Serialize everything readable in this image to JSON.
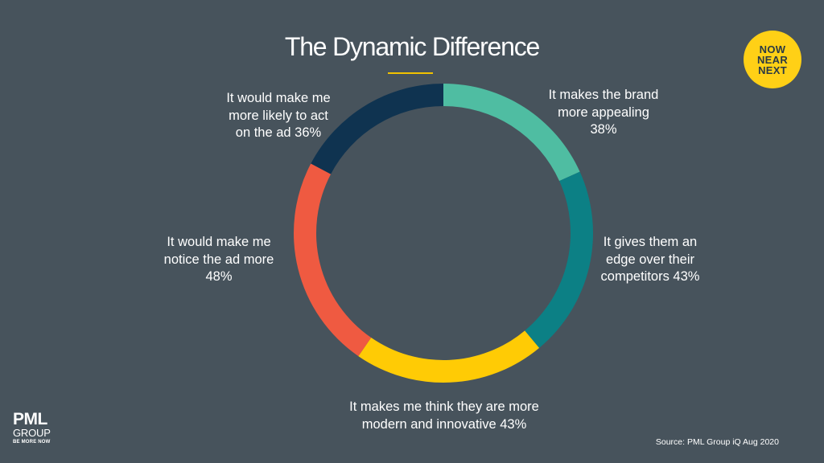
{
  "title": "The Dynamic Difference",
  "badge": [
    "NOW",
    "NEAR",
    "NEXT"
  ],
  "logo": {
    "line1": "PML",
    "line2": "GROUP",
    "tagline": "BE MORE NOW"
  },
  "source": "Source: PML Group iQ Aug 2020",
  "chart_data": {
    "type": "pie",
    "variant": "donut",
    "title": "The Dynamic Difference",
    "slices": [
      {
        "label": [
          "It makes the brand",
          "more appealing",
          "38%"
        ],
        "value": 38,
        "color": "#4fbda2"
      },
      {
        "label": [
          "It gives them an",
          "edge over their",
          "competitors 43%"
        ],
        "value": 43,
        "color": "#0c8085"
      },
      {
        "label": [
          "It makes me think they are more",
          "modern and innovative 43%"
        ],
        "value": 43,
        "color": "#ffcb05"
      },
      {
        "label": [
          "It would make me",
          "notice the ad more",
          "48%"
        ],
        "value": 48,
        "color": "#ef5a41"
      },
      {
        "label": [
          "It would make me",
          "more likely to act",
          "on the ad 36%"
        ],
        "value": 36,
        "color": "#0f3350"
      }
    ]
  }
}
